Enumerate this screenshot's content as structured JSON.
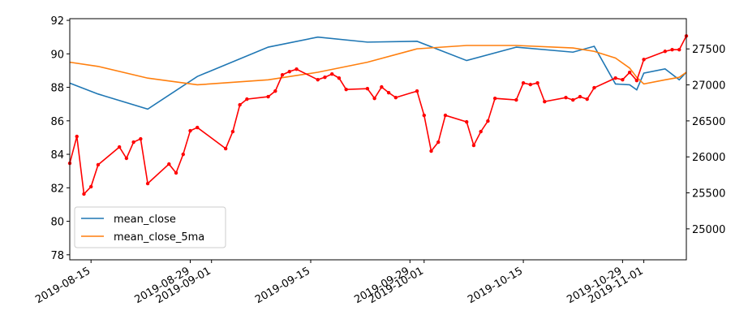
{
  "chart_data": {
    "type": "line",
    "x": [
      "2019-08-12",
      "2019-08-16",
      "2019-08-23",
      "2019-08-30",
      "2019-09-09",
      "2019-09-16",
      "2019-09-23",
      "2019-09-30",
      "2019-10-07",
      "2019-10-14",
      "2019-10-22",
      "2019-10-25",
      "2019-10-28",
      "2019-10-30",
      "2019-10-31",
      "2019-11-01",
      "2019-11-04",
      "2019-11-06",
      "2019-11-07"
    ],
    "series": [
      {
        "name": "mean_close",
        "color": "#1f77b4",
        "values": [
          88.25,
          87.6,
          86.7,
          88.65,
          90.4,
          91.0,
          90.7,
          90.75,
          89.6,
          90.4,
          90.1,
          90.45,
          88.2,
          88.15,
          87.85,
          88.85,
          89.1,
          88.45,
          88.9
        ]
      },
      {
        "name": "mean_close_5ma",
        "color": "#ff7f0e",
        "values": [
          89.5,
          89.25,
          88.55,
          88.15,
          88.45,
          88.9,
          89.5,
          90.3,
          90.5,
          90.5,
          90.35,
          90.15,
          89.75,
          89.15,
          88.6,
          88.2,
          88.45,
          88.6,
          88.9
        ]
      },
      {
        "color": "#ff0000",
        "axis": "y2",
        "marker": "dot",
        "x": [
          "2019-08-12",
          "2019-08-13",
          "2019-08-14",
          "2019-08-15",
          "2019-08-16",
          "2019-08-19",
          "2019-08-20",
          "2019-08-21",
          "2019-08-22",
          "2019-08-23",
          "2019-08-26",
          "2019-08-27",
          "2019-08-28",
          "2019-08-29",
          "2019-08-30",
          "2019-09-03",
          "2019-09-04",
          "2019-09-05",
          "2019-09-06",
          "2019-09-09",
          "2019-09-10",
          "2019-09-11",
          "2019-09-12",
          "2019-09-13",
          "2019-09-16",
          "2019-09-17",
          "2019-09-18",
          "2019-09-19",
          "2019-09-20",
          "2019-09-23",
          "2019-09-24",
          "2019-09-25",
          "2019-09-26",
          "2019-09-27",
          "2019-09-30",
          "2019-10-01",
          "2019-10-02",
          "2019-10-03",
          "2019-10-04",
          "2019-10-07",
          "2019-10-08",
          "2019-10-09",
          "2019-10-10",
          "2019-10-11",
          "2019-10-14",
          "2019-10-15",
          "2019-10-16",
          "2019-10-17",
          "2019-10-18",
          "2019-10-21",
          "2019-10-22",
          "2019-10-23",
          "2019-10-24",
          "2019-10-25",
          "2019-10-28",
          "2019-10-29",
          "2019-10-30",
          "2019-10-31",
          "2019-11-01",
          "2019-11-04",
          "2019-11-05",
          "2019-11-06",
          "2019-11-07"
        ],
        "values": [
          25912,
          26284,
          25484,
          25586,
          25890,
          26137,
          25980,
          26205,
          26250,
          25630,
          25900,
          25777,
          26036,
          26363,
          26408,
          26115,
          26351,
          26723,
          26802,
          26836,
          26914,
          27140,
          27185,
          27218,
          27072,
          27106,
          27151,
          27095,
          26937,
          26948,
          26813,
          26971,
          26892,
          26824,
          26914,
          26577,
          26081,
          26205,
          26577,
          26486,
          26160,
          26351,
          26498,
          26813,
          26791,
          27027,
          27005,
          27027,
          26768,
          26824,
          26791,
          26836,
          26802,
          26960,
          27095,
          27072,
          27173,
          27061,
          27353,
          27466,
          27489,
          27489,
          27680
        ]
      }
    ],
    "xlim": [
      "2019-08-12",
      "2019-11-07"
    ],
    "xticks": [
      "2019-08-15",
      "2019-08-29",
      "2019-09-01",
      "2019-09-15",
      "2019-09-29",
      "2019-10-01",
      "2019-10-15",
      "2019-10-29",
      "2019-11-01"
    ],
    "ylim": [
      77.7,
      92.1
    ],
    "yticks": [
      78,
      80,
      82,
      84,
      86,
      88,
      90,
      92
    ],
    "y2lim": [
      24570,
      27920
    ],
    "y2ticks": [
      25000,
      25500,
      26000,
      26500,
      27000,
      27500
    ],
    "legend": "lower left"
  }
}
